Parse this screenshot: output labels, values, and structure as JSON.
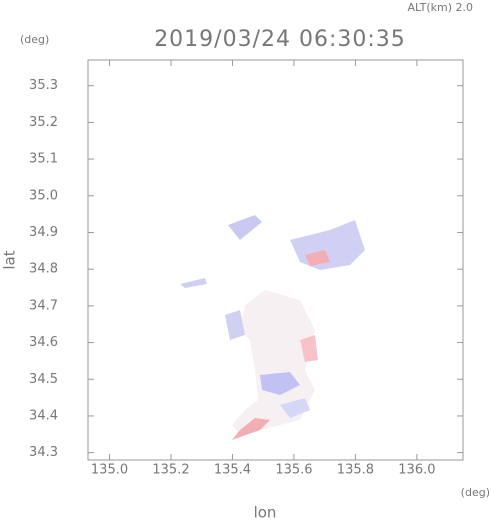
{
  "chart_data": {
    "type": "map",
    "title": "2019/03/24 06:30:35",
    "subtitle": "ALT(km) 2.0",
    "y_unit": "(deg)",
    "x_unit": "(deg)",
    "x_label": "lon",
    "y_label": "lat",
    "xlim": [
      134.93,
      136.15
    ],
    "ylim": [
      34.28,
      35.37
    ],
    "xticks": [
      {
        "value": 135.0,
        "label": "135.0"
      },
      135.2,
      135.4,
      135.6,
      135.8,
      {
        "value": 136.0,
        "label": "136.0"
      }
    ],
    "yticks": [
      34.3,
      34.4,
      34.5,
      34.6,
      34.7,
      34.8,
      34.9,
      {
        "value": 35.0,
        "label": "35.0"
      },
      35.1,
      35.2,
      35.3
    ]
  }
}
